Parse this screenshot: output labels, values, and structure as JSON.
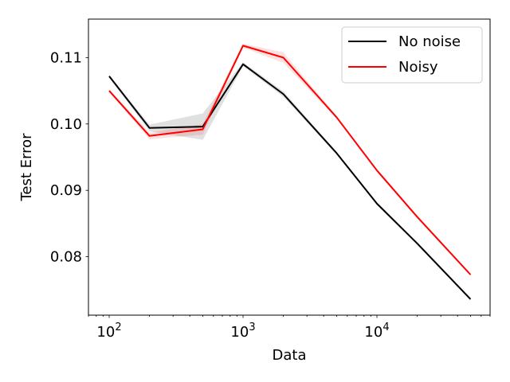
{
  "chart_data": {
    "type": "line",
    "xlabel": "Data",
    "ylabel": "Test Error",
    "x_scale": "log",
    "x": [
      100,
      200,
      500,
      1000,
      2000,
      5000,
      10000,
      20000,
      50000
    ],
    "xlim": [
      70,
      70000
    ],
    "ylim": [
      0.0712,
      0.1158
    ],
    "x_ticks": [
      {
        "value": 100,
        "base": "10",
        "exp": "2"
      },
      {
        "value": 1000,
        "base": "10",
        "exp": "3"
      },
      {
        "value": 10000,
        "base": "10",
        "exp": "4"
      }
    ],
    "y_ticks": [
      {
        "value": 0.08,
        "label": "0.08"
      },
      {
        "value": 0.09,
        "label": "0.09"
      },
      {
        "value": 0.1,
        "label": "0.10"
      },
      {
        "value": 0.11,
        "label": "0.11"
      }
    ],
    "series": [
      {
        "name": "No noise",
        "color": "#000000",
        "band_color": "#000000",
        "values": [
          0.1072,
          0.0994,
          0.0996,
          0.109,
          0.1045,
          0.0956,
          0.088,
          0.082,
          0.0736
        ],
        "band_halfwidth": [
          0.0002,
          0.0005,
          0.002,
          0.0003,
          0.0004,
          0.0002,
          0.0002,
          0.0002,
          0.0002
        ]
      },
      {
        "name": "Noisy",
        "color": "#ff0000",
        "band_color": "#ff0000",
        "values": [
          0.105,
          0.0982,
          0.0992,
          0.1118,
          0.11,
          0.101,
          0.093,
          0.086,
          0.0773
        ],
        "band_halfwidth": [
          0.0002,
          0.0005,
          0.0008,
          0.0003,
          0.0008,
          0.0002,
          0.0002,
          0.0002,
          0.0002
        ]
      }
    ],
    "legend": {
      "position": "top-right"
    },
    "grid": false
  }
}
